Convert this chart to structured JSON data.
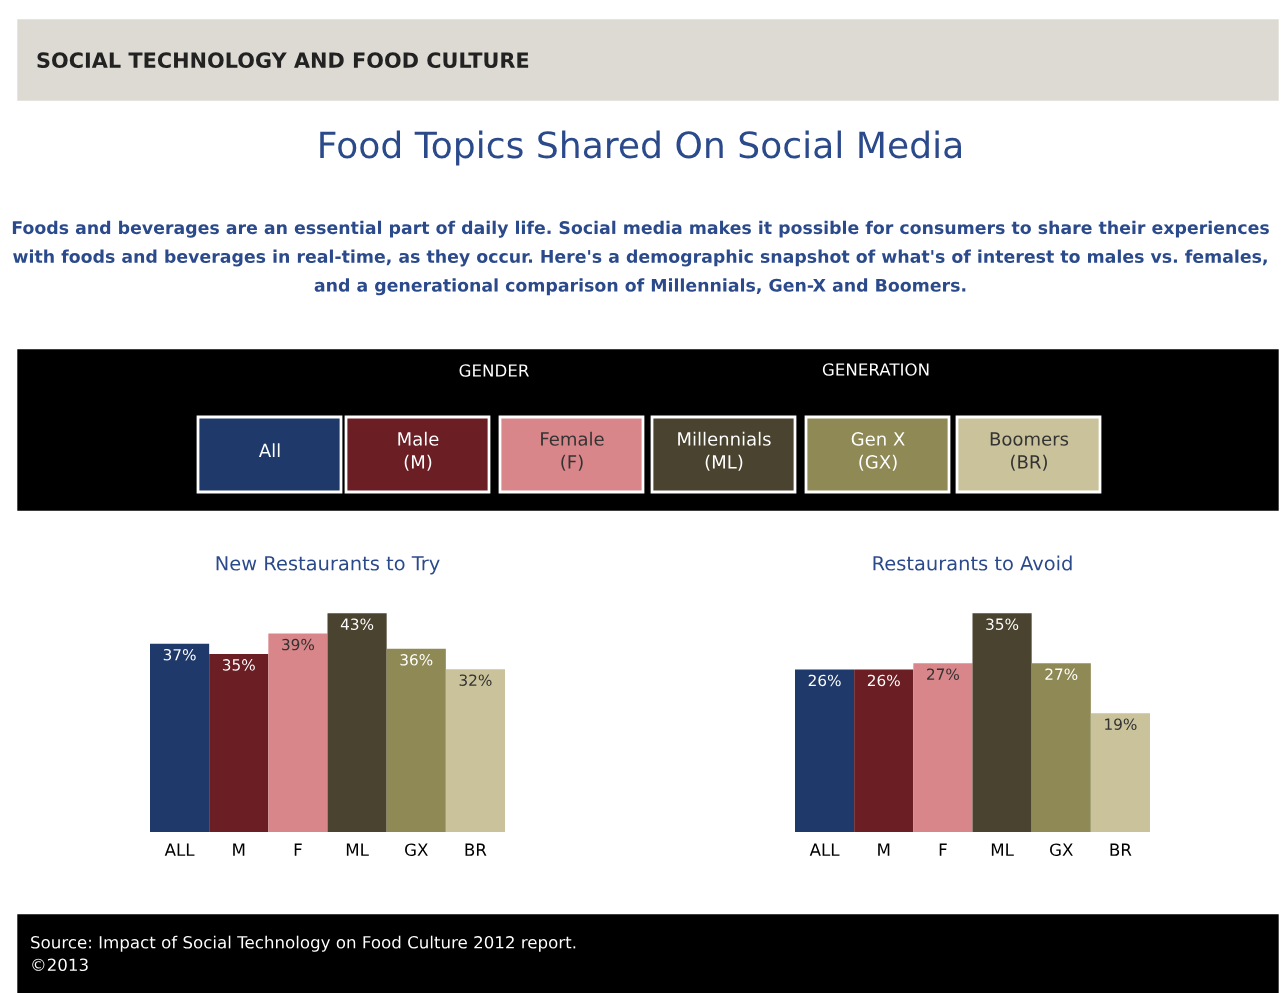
{
  "chart_data": [
    {
      "type": "other",
      "title": "Food Topics Shared On Social Media",
      "subtitle": "Foods and beverages are an essential part of daily life. Social media makes it possible for consumers to share their experiences with foods and beverages in real-time, as they occur. Here's a demographic snapshot of what's of interest to males vs. females, and a generational comparison of Millennials, Gen-X and Boomers.",
      "annotations": [
        "SOCIAL TECHNOLOGY AND FOOD CULTURE",
        "GENDER",
        "GENERATION",
        "All",
        "Male\n(M)",
        "Female\n(F)",
        "Millennials\n(ML)",
        "Gen X\n(GX)",
        "Boomers\n(BR)",
        "Source: Impact of Social Technology on Food Culture 2012 report.\n©2013"
      ]
    },
    {
      "type": "bar",
      "title": "New Restaurants to Try",
      "categories": [
        "ALL",
        "M",
        "F",
        "ML",
        "GX",
        "BR"
      ],
      "values": [
        37,
        35,
        39,
        43,
        36,
        32
      ],
      "value_labels": [
        "37%",
        "35%",
        "39%",
        "43%",
        "36%",
        "32%"
      ],
      "colors": [
        "#1f3a6a",
        "#6b1f24",
        "#d9868a",
        "#4a4330",
        "#8f8a55",
        "#c9c29a"
      ]
    },
    {
      "type": "bar",
      "title": "Restaurants to Avoid",
      "categories": [
        "ALL",
        "M",
        "F",
        "ML",
        "GX",
        "BR"
      ],
      "values": [
        26,
        26,
        27,
        35,
        27,
        19
      ],
      "value_labels": [
        "26%",
        "26%",
        "27%",
        "35%",
        "27%",
        "19%"
      ],
      "colors": [
        "#1f3a6a",
        "#6b1f24",
        "#d9868a",
        "#4a4330",
        "#8f8a55",
        "#c9c29a"
      ]
    }
  ]
}
